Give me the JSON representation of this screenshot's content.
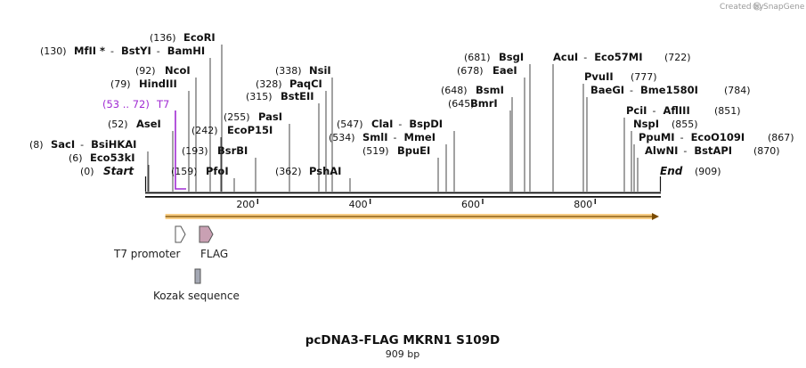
{
  "credit": "Created by",
  "brand": "SnapGene",
  "sequence": {
    "length": 909,
    "title": "pcDNA3-FLAG MKRN1 S109D",
    "subtitle": "909 bp"
  },
  "ruler": [
    200,
    400,
    600,
    800
  ],
  "ends": [
    {
      "name": "Start",
      "pos": 0,
      "pos_label": "(0)"
    },
    {
      "name": "End",
      "pos": 909,
      "pos_label": "(909)"
    }
  ],
  "sites": [
    {
      "names": [
        "SacI",
        "BsiHKAI"
      ],
      "pos_label": "(8)",
      "pos": 8
    },
    {
      "names": [
        "Eco53kI"
      ],
      "pos_label": "(6)",
      "pos": 6
    },
    {
      "names": [
        "AseI"
      ],
      "pos_label": "(52)",
      "pos": 52
    },
    {
      "names": [
        "HindIII"
      ],
      "pos_label": "(79)",
      "pos": 79
    },
    {
      "names": [
        "NcoI"
      ],
      "pos_label": "(92)",
      "pos": 92
    },
    {
      "names": [
        "MfII *",
        "BstYI",
        "BamHI"
      ],
      "pos_label": "(130)",
      "pos": 130
    },
    {
      "names": [
        "EcoRI"
      ],
      "pos_label": "(136)",
      "pos": 136
    },
    {
      "names": [
        "PfoI"
      ],
      "pos_label": "(159)",
      "pos": 159
    },
    {
      "names": [
        "BsrBI"
      ],
      "pos_label": "(193)",
      "pos": 193
    },
    {
      "names": [
        "EcoP15I"
      ],
      "pos_label": "(242)",
      "pos": 242
    },
    {
      "names": [
        "PasI"
      ],
      "pos_label": "(255)",
      "pos": 255
    },
    {
      "names": [
        "BstEII"
      ],
      "pos_label": "(315)",
      "pos": 315
    },
    {
      "names": [
        "PaqCI"
      ],
      "pos_label": "(328)",
      "pos": 328
    },
    {
      "names": [
        "NsiI"
      ],
      "pos_label": "(338)",
      "pos": 338
    },
    {
      "names": [
        "PshAI"
      ],
      "pos_label": "(362)",
      "pos": 362
    },
    {
      "names": [
        "BpuEI"
      ],
      "pos_label": "(519)",
      "pos": 519
    },
    {
      "names": [
        "SmlI",
        "MmeI"
      ],
      "pos_label": "(534)",
      "pos": 534
    },
    {
      "names": [
        "ClaI",
        "BspDI"
      ],
      "pos_label": "(547)",
      "pos": 547
    },
    {
      "names": [
        "BmrI"
      ],
      "pos_label": "(645)",
      "pos": 645
    },
    {
      "names": [
        "BsmI"
      ],
      "pos_label": "(648)",
      "pos": 648
    },
    {
      "names": [
        "EaeI"
      ],
      "pos_label": "(678)",
      "pos": 678
    },
    {
      "names": [
        "BsgI"
      ],
      "pos_label": "(681)",
      "pos": 681
    },
    {
      "names": [
        "AcuI",
        "Eco57MI"
      ],
      "pos_label": "(722)",
      "pos": 722
    },
    {
      "names": [
        "PvuII"
      ],
      "pos_label": "(777)",
      "pos": 777
    },
    {
      "names": [
        "BaeGI",
        "Bme1580I"
      ],
      "pos_label": "(784)",
      "pos": 784
    },
    {
      "names": [
        "PciI",
        "AflIII"
      ],
      "pos_label": "(851)",
      "pos": 851
    },
    {
      "names": [
        "NspI"
      ],
      "pos_label": "(855)",
      "pos": 855
    },
    {
      "names": [
        "PpuMI",
        "EcoO109I"
      ],
      "pos_label": "(867)",
      "pos": 867
    },
    {
      "names": [
        "AlwNI",
        "BstAPI"
      ],
      "pos_label": "(870)",
      "pos": 870
    }
  ],
  "primer": {
    "name": "T7",
    "range_label": "(53 .. 72)",
    "start": 53,
    "end": 72,
    "color": "#a02bd3"
  },
  "features": [
    {
      "name": "T7 promoter",
      "start": 53,
      "end": 72,
      "color": "#ffffff"
    },
    {
      "name": "FLAG",
      "start": 96,
      "end": 119,
      "color": "#c9a0b3"
    },
    {
      "name": "Kozak sequence",
      "start": 87,
      "end": 96,
      "color": "#a4a8b4"
    }
  ],
  "orf": {
    "start": 96,
    "end": 909,
    "color": "#f7cd86"
  }
}
